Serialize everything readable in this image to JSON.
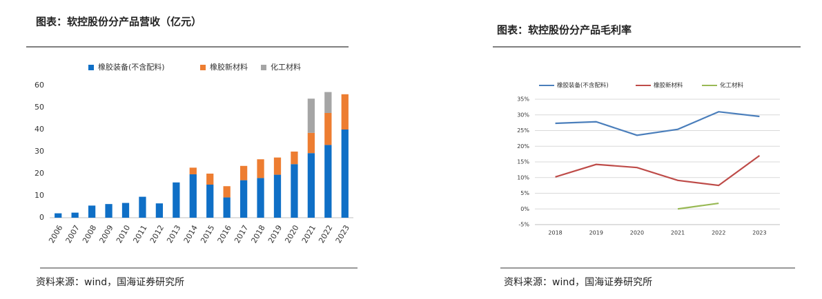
{
  "chart_data": [
    {
      "type": "bar",
      "stacked": true,
      "title": "图表：软控股份分产品营收（亿元）",
      "source": "资料来源：wind，国海证券研究所",
      "categories": [
        "2006",
        "2007",
        "2008",
        "2009",
        "2010",
        "2011",
        "2012",
        "2013",
        "2014",
        "2015",
        "2016",
        "2017",
        "2018",
        "2019",
        "2020",
        "2021",
        "2022",
        "2023"
      ],
      "series": [
        {
          "name": "橡胶装备(不含配料)",
          "color": "#0f6fc6",
          "values": [
            2,
            2.3,
            5.5,
            6.2,
            6.7,
            9.5,
            6.5,
            16,
            19.7,
            15,
            9.2,
            17,
            18,
            19.5,
            24.3,
            29.3,
            33,
            40
          ]
        },
        {
          "name": "橡胶新材料",
          "color": "#ed7d31",
          "values": [
            null,
            null,
            null,
            null,
            null,
            null,
            null,
            null,
            3,
            5,
            5.1,
            6.5,
            8.5,
            7.8,
            5.7,
            9.2,
            14.5,
            16
          ]
        },
        {
          "name": "化工材料",
          "color": "#a5a5a5",
          "values": [
            null,
            null,
            null,
            null,
            null,
            null,
            null,
            null,
            null,
            null,
            null,
            null,
            null,
            null,
            null,
            15.5,
            9.5,
            null
          ]
        }
      ],
      "ylim": [
        0,
        60
      ],
      "yticks": [
        0,
        10,
        20,
        30,
        40,
        50,
        60
      ],
      "grid": false,
      "legend": "top"
    },
    {
      "type": "line",
      "title": "图表：软控股份分产品毛利率",
      "source": "资料来源：wind，国海证券研究所",
      "categories": [
        "2018",
        "2019",
        "2020",
        "2021",
        "2022",
        "2023"
      ],
      "series": [
        {
          "name": "橡胶装备(不含配料)",
          "color": "#4a7ebb",
          "values": [
            27.3,
            27.8,
            23.5,
            25.4,
            31,
            29.5
          ]
        },
        {
          "name": "橡胶新材料",
          "color": "#be4b48",
          "values": [
            10.2,
            14.2,
            13.2,
            9.1,
            7.5,
            17
          ]
        },
        {
          "name": "化工材料",
          "color": "#98b954",
          "values": [
            null,
            null,
            null,
            0,
            1.8,
            null
          ]
        }
      ],
      "ylim": [
        -5,
        35
      ],
      "yticks": [
        {
          "value": -5,
          "label": "-5%"
        },
        {
          "value": 0,
          "label": "0%"
        },
        {
          "value": 5,
          "label": "5%"
        },
        {
          "value": 10,
          "label": "10%"
        },
        {
          "value": 15,
          "label": "15%"
        },
        {
          "value": 20,
          "label": "20%"
        },
        {
          "value": 25,
          "label": "25%"
        },
        {
          "value": 30,
          "label": "30%"
        },
        {
          "value": 35,
          "label": "35%"
        }
      ],
      "grid": true,
      "legend": "top"
    }
  ]
}
